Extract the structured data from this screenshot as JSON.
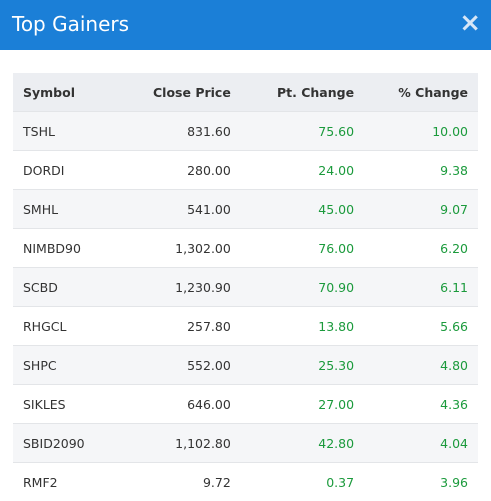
{
  "header": {
    "title": "Top Gainers",
    "close": "×"
  },
  "table": {
    "columns": [
      "Symbol",
      "Close Price",
      "Pt. Change",
      "% Change"
    ],
    "rows": [
      [
        "TSHL",
        "831.60",
        "75.60",
        "10.00"
      ],
      [
        "DORDI",
        "280.00",
        "24.00",
        "9.38"
      ],
      [
        "SMHL",
        "541.00",
        "45.00",
        "9.07"
      ],
      [
        "NIMBD90",
        "1,302.00",
        "76.00",
        "6.20"
      ],
      [
        "SCBD",
        "1,230.90",
        "70.90",
        "6.11"
      ],
      [
        "RHGCL",
        "257.80",
        "13.80",
        "5.66"
      ],
      [
        "SHPC",
        "552.00",
        "25.30",
        "4.80"
      ],
      [
        "SIKLES",
        "646.00",
        "27.00",
        "4.36"
      ],
      [
        "SBID2090",
        "1,102.80",
        "42.80",
        "4.04"
      ],
      [
        "RMF2",
        "9.72",
        "0.37",
        "3.96"
      ]
    ]
  }
}
